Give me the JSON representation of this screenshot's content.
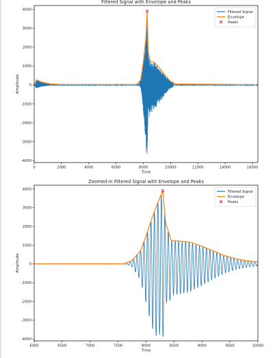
{
  "colors": {
    "signal": "#1f77b4",
    "envelope": "#ff7f0e",
    "peaks": "#d62728",
    "axis": "#000000",
    "legend_border": "#cccccc"
  },
  "chart_data": [
    {
      "type": "line",
      "title": "Filtered Signal with Envelope and Peaks",
      "xlabel": "Time",
      "ylabel": "Amplitude",
      "xlim": [
        0,
        16400
      ],
      "ylim": [
        -4100,
        4200
      ],
      "xticks": [
        0,
        2000,
        4000,
        6000,
        8000,
        10000,
        12000,
        14000,
        16000
      ],
      "yticks": [
        -4000,
        -3000,
        -2000,
        -1000,
        0,
        1000,
        2000,
        3000,
        4000
      ],
      "grid": false,
      "legend_position": "top-right",
      "series": [
        {
          "name": "Filtered Signal",
          "kind": "line",
          "color_key": "signal",
          "description_points": {
            "burst1_start": 0,
            "burst1_end": 1500,
            "burst1_max": 280,
            "burst1_min": -150,
            "burst2_onset": 7700,
            "burst2_peak_time": 8280,
            "burst2_max": 3900,
            "burst2_min": -3750,
            "burst2_decay_end": 10200
          }
        },
        {
          "name": "Envelope",
          "kind": "line",
          "color_key": "envelope",
          "x": [
            0,
            200,
            600,
            1200,
            2000,
            7500,
            7800,
            8000,
            8200,
            8280,
            8350,
            8500,
            8800,
            9200,
            9600,
            10000,
            10400,
            16400
          ],
          "y": [
            0,
            260,
            140,
            60,
            20,
            20,
            250,
            1200,
            2600,
            3900,
            1800,
            1250,
            1200,
            900,
            500,
            200,
            50,
            10
          ]
        },
        {
          "name": "Peaks",
          "kind": "scatter",
          "marker": "x",
          "color_key": "peaks",
          "x": [
            8280
          ],
          "y": [
            3900
          ]
        }
      ]
    },
    {
      "type": "line",
      "title": "Zoomed-in Filtered Signal with Envelope and Peaks",
      "xlabel": "Time",
      "ylabel": "Amplitude",
      "xlim": [
        6000,
        10000
      ],
      "ylim": [
        -4100,
        4200
      ],
      "xticks": [
        6000,
        6500,
        7000,
        7500,
        8000,
        8500,
        9000,
        9500,
        10000
      ],
      "yticks": [
        -4000,
        -3000,
        -2000,
        -1000,
        0,
        1000,
        2000,
        3000,
        4000
      ],
      "grid": false,
      "legend_position": "top-right",
      "series": [
        {
          "name": "Filtered Signal",
          "kind": "line",
          "color_key": "signal",
          "description_points": {
            "onset": 7700,
            "peak_time": 8300,
            "max": 3900,
            "min": -3750,
            "decay_end": 10000
          }
        },
        {
          "name": "Envelope",
          "kind": "line",
          "color_key": "envelope",
          "x": [
            6000,
            7600,
            7750,
            7900,
            8000,
            8100,
            8200,
            8300,
            8350,
            8450,
            8600,
            8800,
            9000,
            9200,
            9400,
            9600,
            9800,
            10000
          ],
          "y": [
            5,
            10,
            180,
            700,
            1500,
            2400,
            3200,
            3900,
            2200,
            1250,
            1220,
            1150,
            950,
            700,
            450,
            280,
            170,
            110
          ]
        },
        {
          "name": "Peaks",
          "kind": "scatter",
          "marker": "x",
          "color_key": "peaks",
          "x": [
            8300
          ],
          "y": [
            3900
          ]
        }
      ]
    }
  ]
}
